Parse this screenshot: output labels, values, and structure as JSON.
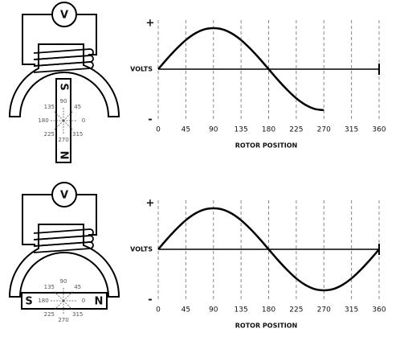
{
  "diagrams": [
    {
      "meter": "V",
      "poles": [
        "S",
        "N"
      ],
      "angles": [
        90,
        45,
        0,
        315,
        270,
        225,
        180,
        135
      ]
    },
    {
      "meter": "V",
      "poles": [
        "S",
        "N"
      ],
      "angles": [
        90,
        45,
        0,
        315,
        270,
        225,
        180,
        135
      ]
    }
  ],
  "chart_data": [
    {
      "type": "line",
      "xlabel": "ROTOR POSITION",
      "color": "#000000",
      "x": [
        0,
        15,
        30,
        45,
        60,
        75,
        90,
        105,
        120,
        135,
        150,
        165,
        180,
        195,
        210,
        225,
        240,
        255,
        270
      ],
      "values": [
        0,
        0.26,
        0.5,
        0.71,
        0.87,
        0.97,
        1,
        0.97,
        0.87,
        0.71,
        0.5,
        0.26,
        0,
        -0.26,
        -0.5,
        -0.71,
        -0.87,
        -0.97,
        -1
      ],
      "xlim": [
        0,
        360
      ],
      "xticks": [
        0,
        45,
        90,
        135,
        180,
        225,
        270,
        315,
        360
      ],
      "ylim": [
        -1,
        1
      ],
      "yticks": [
        {
          "value": -1,
          "label": "-"
        },
        {
          "value": 0,
          "label": "VOLTS"
        },
        {
          "value": 1,
          "label": "+"
        }
      ],
      "grid": true
    },
    {
      "type": "line",
      "xlabel": "ROTOR POSITION",
      "color": "#000000",
      "x": [
        0,
        15,
        30,
        45,
        60,
        75,
        90,
        105,
        120,
        135,
        150,
        165,
        180,
        195,
        210,
        225,
        240,
        255,
        270,
        285,
        300,
        315,
        330,
        345,
        360
      ],
      "values": [
        0,
        0.26,
        0.5,
        0.71,
        0.87,
        0.97,
        1,
        0.97,
        0.87,
        0.71,
        0.5,
        0.26,
        0,
        -0.26,
        -0.5,
        -0.71,
        -0.87,
        -0.97,
        -1,
        -0.97,
        -0.87,
        -0.71,
        -0.5,
        -0.26,
        0
      ],
      "xlim": [
        0,
        360
      ],
      "xticks": [
        0,
        45,
        90,
        135,
        180,
        225,
        270,
        315,
        360
      ],
      "ylim": [
        -1,
        1
      ],
      "yticks": [
        {
          "value": -1,
          "label": "-"
        },
        {
          "value": 0,
          "label": "VOLTS"
        },
        {
          "value": 1,
          "label": "+"
        }
      ],
      "grid": true
    }
  ]
}
